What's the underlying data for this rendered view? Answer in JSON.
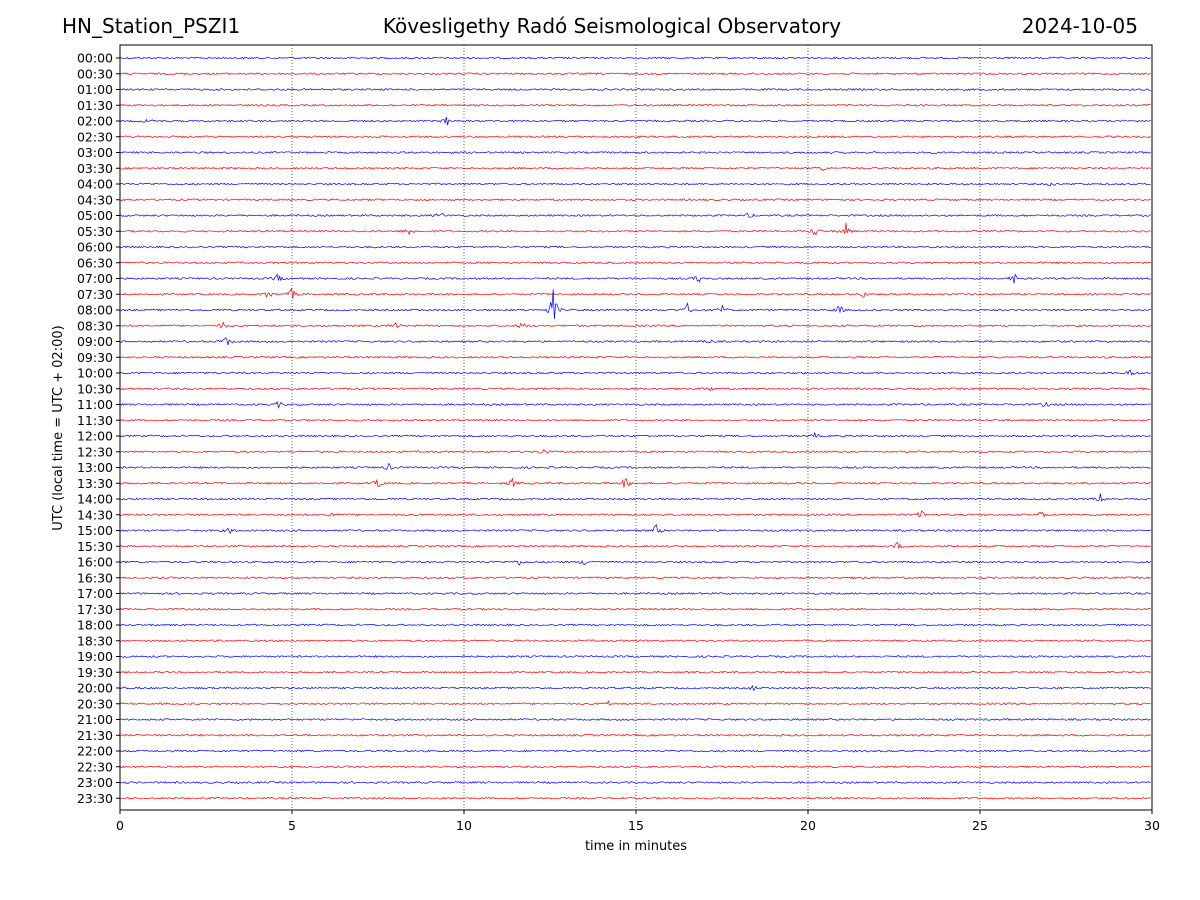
{
  "header": {
    "station": "HN_Station_PSZI1",
    "title": "Kövesligethy Radó Seismological Observatory",
    "date": "2024-10-05"
  },
  "colors": {
    "even": "#0000ff",
    "odd": "#ff0000",
    "grid": "#000000"
  },
  "chart_data": {
    "type": "line",
    "title": "Kövesligethy Radó Seismological Observatory",
    "xlabel": "time in minutes",
    "ylabel": "UTC (local time = UTC + 02:00)",
    "xlim": [
      0,
      30
    ],
    "xticks": [
      0,
      5,
      10,
      15,
      20,
      25,
      30
    ],
    "rows": [
      "00:00",
      "00:30",
      "01:00",
      "01:30",
      "02:00",
      "02:30",
      "03:00",
      "03:30",
      "04:00",
      "04:30",
      "05:00",
      "05:30",
      "06:00",
      "06:30",
      "07:00",
      "07:30",
      "08:00",
      "08:30",
      "09:00",
      "09:30",
      "10:00",
      "10:30",
      "11:00",
      "11:30",
      "12:00",
      "12:30",
      "13:00",
      "13:30",
      "14:00",
      "14:30",
      "15:00",
      "15:30",
      "16:00",
      "16:30",
      "17:00",
      "17:30",
      "18:00",
      "18:30",
      "19:00",
      "19:30",
      "20:00",
      "20:30",
      "21:00",
      "21:30",
      "22:00",
      "22:30",
      "23:00",
      "23:30"
    ],
    "events": [
      {
        "row": "02:00",
        "minute": 9.5,
        "amp": 5
      },
      {
        "row": "02:00",
        "minute": 0.8,
        "amp": 2
      },
      {
        "row": "03:30",
        "minute": 20.4,
        "amp": 3
      },
      {
        "row": "04:00",
        "minute": 27.1,
        "amp": 3
      },
      {
        "row": "05:00",
        "minute": 18.3,
        "amp": 3
      },
      {
        "row": "05:00",
        "minute": 9.3,
        "amp": 4
      },
      {
        "row": "05:30",
        "minute": 8.4,
        "amp": 5
      },
      {
        "row": "05:30",
        "minute": 20.2,
        "amp": 6
      },
      {
        "row": "05:30",
        "minute": 21.1,
        "amp": 8
      },
      {
        "row": "07:00",
        "minute": 4.6,
        "amp": 5
      },
      {
        "row": "07:00",
        "minute": 16.8,
        "amp": 5
      },
      {
        "row": "07:00",
        "minute": 26.0,
        "amp": 5
      },
      {
        "row": "07:30",
        "minute": 4.3,
        "amp": 5
      },
      {
        "row": "07:30",
        "minute": 5.0,
        "amp": 6
      },
      {
        "row": "07:30",
        "minute": 21.6,
        "amp": 4
      },
      {
        "row": "08:00",
        "minute": 12.6,
        "amp": 22
      },
      {
        "row": "08:00",
        "minute": 16.5,
        "amp": 6
      },
      {
        "row": "08:00",
        "minute": 17.5,
        "amp": 5
      },
      {
        "row": "08:00",
        "minute": 20.9,
        "amp": 6
      },
      {
        "row": "08:30",
        "minute": 3.0,
        "amp": 4
      },
      {
        "row": "08:30",
        "minute": 8.0,
        "amp": 4
      },
      {
        "row": "08:30",
        "minute": 11.7,
        "amp": 4
      },
      {
        "row": "09:00",
        "minute": 3.1,
        "amp": 7
      },
      {
        "row": "09:00",
        "minute": 17.1,
        "amp": 3
      },
      {
        "row": "10:00",
        "minute": 24.2,
        "amp": 3
      },
      {
        "row": "10:00",
        "minute": 29.4,
        "amp": 5
      },
      {
        "row": "10:30",
        "minute": 17.1,
        "amp": 4
      },
      {
        "row": "11:00",
        "minute": 4.6,
        "amp": 3
      },
      {
        "row": "11:00",
        "minute": 26.9,
        "amp": 3
      },
      {
        "row": "12:00",
        "minute": 20.2,
        "amp": 3
      },
      {
        "row": "12:30",
        "minute": 12.3,
        "amp": 4
      },
      {
        "row": "13:00",
        "minute": 7.8,
        "amp": 4
      },
      {
        "row": "13:30",
        "minute": 7.5,
        "amp": 5
      },
      {
        "row": "13:30",
        "minute": 11.4,
        "amp": 5
      },
      {
        "row": "13:30",
        "minute": 14.7,
        "amp": 7
      },
      {
        "row": "14:00",
        "minute": 28.5,
        "amp": 5
      },
      {
        "row": "14:30",
        "minute": 23.3,
        "amp": 6
      },
      {
        "row": "14:30",
        "minute": 26.8,
        "amp": 5
      },
      {
        "row": "14:30",
        "minute": 6.1,
        "amp": 4
      },
      {
        "row": "15:00",
        "minute": 3.2,
        "amp": 3
      },
      {
        "row": "15:00",
        "minute": 15.6,
        "amp": 7
      },
      {
        "row": "15:30",
        "minute": 22.6,
        "amp": 4
      },
      {
        "row": "16:00",
        "minute": 11.6,
        "amp": 3
      },
      {
        "row": "16:00",
        "minute": 13.5,
        "amp": 3
      },
      {
        "row": "16:30",
        "minute": 21.5,
        "amp": 3
      },
      {
        "row": "20:00",
        "minute": 18.4,
        "amp": 3
      },
      {
        "row": "20:30",
        "minute": 14.2,
        "amp": 2
      }
    ]
  }
}
